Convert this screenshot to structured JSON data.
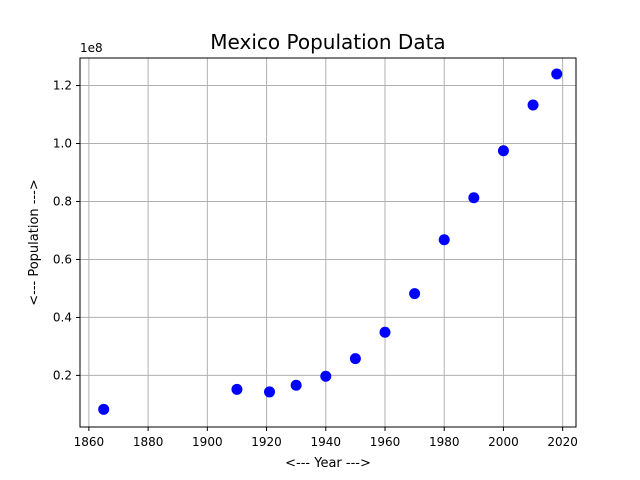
{
  "chart_data": {
    "type": "scatter",
    "title": "Mexico Population Data",
    "xlabel": "<--- Year --->",
    "ylabel": "<--- Population --->",
    "y_offset_label": "1e8",
    "y_scale": 100000000,
    "xlim": [
      1857,
      2024.5
    ],
    "ylim": [
      2200000,
      129500000
    ],
    "x_ticks": [
      1860,
      1880,
      1900,
      1920,
      1940,
      1960,
      1980,
      2000,
      2020
    ],
    "x_tick_labels": [
      "1860",
      "1880",
      "1900",
      "1920",
      "1940",
      "1960",
      "1980",
      "2000",
      "2020"
    ],
    "y_ticks": [
      20000000,
      40000000,
      60000000,
      80000000,
      100000000,
      120000000
    ],
    "y_tick_labels": [
      "0.2",
      "0.4",
      "0.6",
      "0.8",
      "1.0",
      "1.2"
    ],
    "grid": true,
    "marker_color": "#0000ff",
    "series": [
      {
        "x": [
          1865,
          1910,
          1921,
          1930,
          1940,
          1950,
          1960,
          1970,
          1980,
          1990,
          2000,
          2010,
          2018
        ],
        "y": [
          8300000,
          15200000,
          14300000,
          16600000,
          19700000,
          25800000,
          34900000,
          48200000,
          66800000,
          81300000,
          97500000,
          113300000,
          124000000
        ]
      }
    ]
  }
}
